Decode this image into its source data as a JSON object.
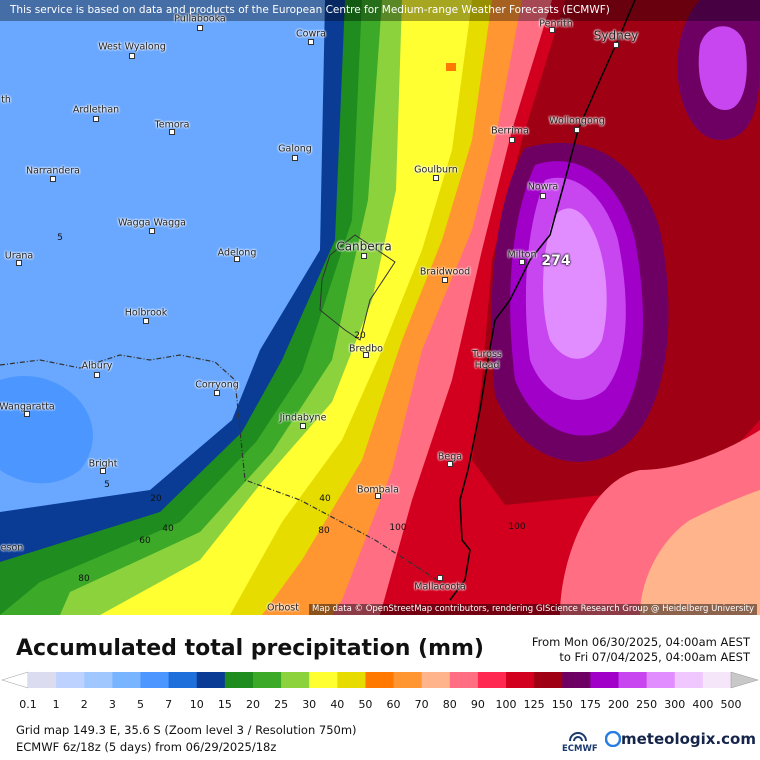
{
  "header": {
    "notice": "This service is based on data and products of the European Centre for Medium-range Weather Forecasts (ECMWF)"
  },
  "map": {
    "places": [
      "Pullabooka",
      "Cowra",
      "West Wyalong",
      "Penrith",
      "Sydney",
      "th",
      "Ardlethan",
      "Temora",
      "Berrima",
      "Wollongong",
      "Galong",
      "Narrandera",
      "Goulburn",
      "Nowra",
      "Wagga Wagga",
      "Canberra",
      "Adelong",
      "Urana",
      "Milton",
      "Braidwood",
      "Holbrook",
      "Bredbo",
      "Tuross Head",
      "Albury",
      "Corryong",
      "Wangaratta",
      "Jindabyne",
      "Bega",
      "Bright",
      "Bombala",
      "eson",
      "Mallacoota",
      "Orbost"
    ],
    "contour_labels": [
      5,
      20,
      5,
      20,
      40,
      40,
      80,
      100,
      100,
      60,
      80
    ],
    "max_label": 274,
    "attribution": "Map data © OpenStreetMap contributors, rendering GIScience Research Group @ Heidelberg University"
  },
  "legend": {
    "title": "Accumulated total precipitation (mm)",
    "from": "From Mon 06/30/2025, 04:00am AEST",
    "to": "to Fri 07/04/2025, 04:00am AEST",
    "ticks": [
      0.1,
      1,
      2,
      3,
      5,
      7,
      10,
      15,
      20,
      25,
      30,
      40,
      50,
      60,
      70,
      80,
      90,
      100,
      125,
      150,
      175,
      200,
      250,
      300,
      400,
      500
    ],
    "colors": [
      "#ffffff",
      "#dcdcf0",
      "#bed2ff",
      "#a0c8ff",
      "#78b4ff",
      "#4b96ff",
      "#1e6edc",
      "#0a3c96",
      "#1e8c1e",
      "#3caa28",
      "#8cd23c",
      "#ffff32",
      "#e6dc00",
      "#ff7800",
      "#ff9632",
      "#ffb48c",
      "#ff6e82",
      "#ff2850",
      "#d2001e",
      "#a00014",
      "#6e0064",
      "#a000c8",
      "#c846f0",
      "#e18cff",
      "#f0c8ff",
      "#f5e6fa",
      "#c8c8c8"
    ]
  },
  "footer": {
    "grid": "Grid map 149.3 E, 35.6 S (Zoom level 3 / Resolution 750m)",
    "model": "ECMWF 6z/18z (5 days) from 06/29/2025/18z",
    "ecmwf_logo": "ECMWF",
    "brand": "meteologix.com"
  }
}
